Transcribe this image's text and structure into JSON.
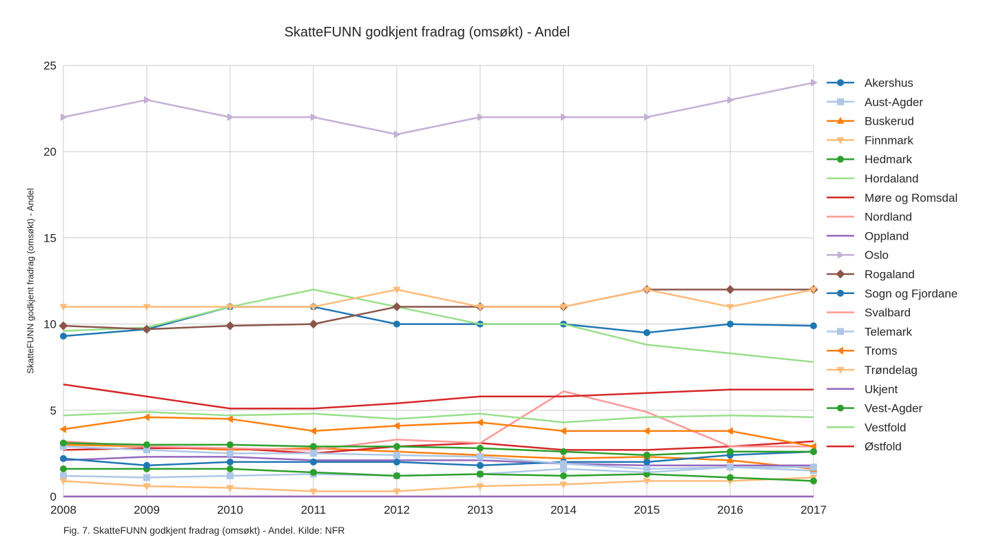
{
  "chart_data": {
    "type": "line",
    "title": "SkatteFUNN godkjent fradrag (omsøkt) - Andel",
    "xlabel": "",
    "ylabel": "SkatteFUNN godkjent fradrag (omsøkt) - Andel",
    "caption": "Fig. 7. SkatteFUNN godkjent fradrag (omsøkt) - Andel. Kilde: NFR",
    "x": [
      2008,
      2009,
      2010,
      2011,
      2012,
      2013,
      2014,
      2015,
      2016,
      2017
    ],
    "xlim": [
      2008,
      2017
    ],
    "ylim": [
      0,
      25
    ],
    "yticks": [
      0,
      5,
      10,
      15,
      20,
      25
    ],
    "grid": true,
    "legend": "right",
    "series": [
      {
        "name": "Akershus",
        "color": "#1f77b4",
        "marker": "circle",
        "values": [
          9.3,
          9.7,
          11.0,
          11.0,
          10.0,
          10.0,
          10.0,
          9.5,
          10.0,
          9.9
        ]
      },
      {
        "name": "Aust-Agder",
        "color": "#aec7e8",
        "marker": "square",
        "values": [
          1.2,
          1.1,
          1.2,
          1.3,
          1.2,
          1.3,
          1.6,
          1.4,
          1.7,
          1.5
        ]
      },
      {
        "name": "Buskerud",
        "color": "#ff7f0e",
        "marker": "triangle-up",
        "values": [
          3.0,
          2.9,
          2.7,
          2.8,
          2.6,
          2.4,
          2.2,
          2.3,
          2.1,
          1.6
        ]
      },
      {
        "name": "Finnmark",
        "color": "#ffbb78",
        "marker": "triangle-down",
        "values": [
          0.9,
          0.6,
          0.5,
          0.3,
          0.3,
          0.6,
          0.7,
          0.9,
          0.9,
          1.1
        ]
      },
      {
        "name": "Hedmark",
        "color": "#2ca02c",
        "marker": "circle",
        "values": [
          1.6,
          1.6,
          1.6,
          1.4,
          1.2,
          1.3,
          1.2,
          1.3,
          1.1,
          0.9
        ]
      },
      {
        "name": "Hordaland",
        "color": "#98df8a",
        "marker": "none",
        "values": [
          9.6,
          9.8,
          11.0,
          12.0,
          11.0,
          10.0,
          10.0,
          8.8,
          8.3,
          7.8
        ]
      },
      {
        "name": "Møre og Romsdal",
        "color": "#d62728",
        "marker": "none",
        "values": [
          2.7,
          2.8,
          2.8,
          2.5,
          2.9,
          3.1,
          2.7,
          2.7,
          2.9,
          3.2
        ]
      },
      {
        "name": "Nordland",
        "color": "#ff9896",
        "marker": "none",
        "values": [
          3.2,
          2.9,
          2.8,
          2.7,
          3.3,
          3.1,
          6.1,
          4.9,
          2.9,
          2.9
        ]
      },
      {
        "name": "Oppland",
        "color": "#9467bd",
        "marker": "none",
        "values": [
          2.1,
          2.3,
          2.3,
          2.1,
          2.1,
          2.1,
          1.9,
          1.8,
          1.8,
          1.8
        ]
      },
      {
        "name": "Oslo",
        "color": "#c5b0d5",
        "marker": "triangle-right",
        "values": [
          22,
          23,
          22,
          22,
          21,
          22,
          22,
          22,
          23,
          24
        ]
      },
      {
        "name": "Rogaland",
        "color": "#8c564b",
        "marker": "diamond",
        "values": [
          9.9,
          9.7,
          9.9,
          10.0,
          11.0,
          11.0,
          11.0,
          12.0,
          12.0,
          12.0
        ]
      },
      {
        "name": "Sogn og Fjordane",
        "color": "#1f77b4",
        "marker": "circle",
        "values": [
          2.2,
          1.8,
          2.0,
          2.0,
          2.0,
          1.8,
          2.0,
          2.0,
          2.4,
          2.6
        ]
      },
      {
        "name": "Svalbard",
        "color": "#ff9896",
        "marker": "none",
        "values": [
          0,
          0,
          0,
          0,
          0,
          0,
          0,
          0,
          0,
          0
        ]
      },
      {
        "name": "Telemark",
        "color": "#aec7e8",
        "marker": "square",
        "values": [
          2.9,
          2.7,
          2.5,
          2.5,
          2.4,
          2.3,
          1.9,
          1.6,
          1.7,
          1.7
        ]
      },
      {
        "name": "Troms",
        "color": "#ff7f0e",
        "marker": "triangle-left",
        "values": [
          3.9,
          4.6,
          4.5,
          3.8,
          4.1,
          4.3,
          3.8,
          3.8,
          3.8,
          2.9
        ]
      },
      {
        "name": "Trøndelag",
        "color": "#ffbb78",
        "marker": "triangle-down",
        "values": [
          11,
          11,
          11,
          11,
          12,
          11,
          11,
          12,
          11,
          12
        ]
      },
      {
        "name": "Ukjent",
        "color": "#9467bd",
        "marker": "none",
        "values": [
          0,
          0,
          0,
          0,
          0,
          0,
          0,
          0,
          0,
          0
        ]
      },
      {
        "name": "Vest-Agder",
        "color": "#2ca02c",
        "marker": "circle",
        "values": [
          3.1,
          3.0,
          3.0,
          2.9,
          2.9,
          2.8,
          2.6,
          2.4,
          2.6,
          2.6
        ]
      },
      {
        "name": "Vestfold",
        "color": "#98df8a",
        "marker": "none",
        "values": [
          4.7,
          4.9,
          4.7,
          4.8,
          4.5,
          4.8,
          4.3,
          4.6,
          4.7,
          4.6
        ]
      },
      {
        "name": "Østfold",
        "color": "#d62728",
        "marker": "none",
        "values": [
          6.5,
          5.8,
          5.1,
          5.1,
          5.4,
          5.8,
          5.8,
          6.0,
          6.2,
          6.2
        ]
      }
    ]
  }
}
